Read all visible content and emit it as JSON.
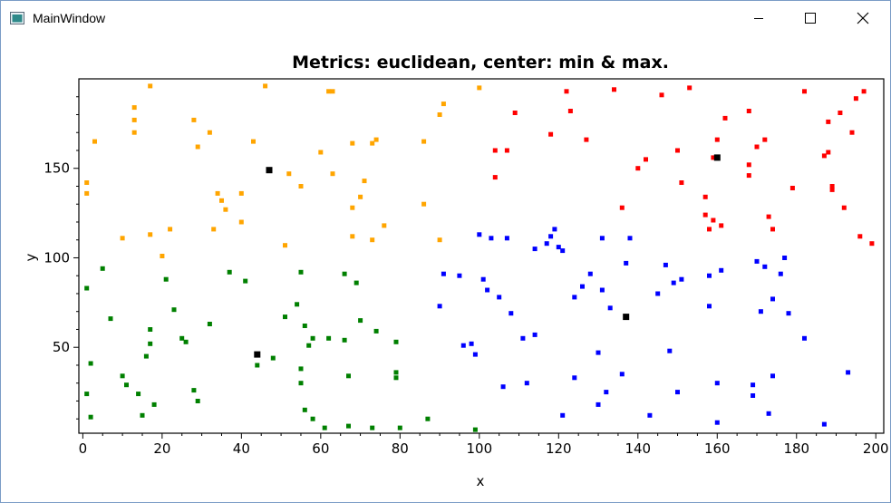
{
  "window": {
    "title": "MainWindow"
  },
  "chart_data": {
    "type": "scatter",
    "title": "Metrics: euclidean, center: min & max.",
    "xlabel": "x",
    "ylabel": "y",
    "xlim": [
      -1,
      202
    ],
    "ylim": [
      2,
      200
    ],
    "xticks": [
      0,
      20,
      40,
      60,
      80,
      100,
      120,
      140,
      160,
      180,
      200
    ],
    "yticks": [
      50,
      100,
      150
    ],
    "grid": false,
    "series": [
      {
        "color": "#ffa500",
        "points": [
          [
            1,
            142
          ],
          [
            1,
            136
          ],
          [
            3,
            165
          ],
          [
            10,
            111
          ],
          [
            13,
            177
          ],
          [
            13,
            184
          ],
          [
            13,
            170
          ],
          [
            17,
            196
          ],
          [
            17,
            113
          ],
          [
            20,
            101
          ],
          [
            22,
            116
          ],
          [
            28,
            177
          ],
          [
            29,
            162
          ],
          [
            32,
            170
          ],
          [
            33,
            116
          ],
          [
            34,
            136
          ],
          [
            35,
            132
          ],
          [
            36,
            127
          ],
          [
            40,
            120
          ],
          [
            40,
            136
          ],
          [
            43,
            165
          ],
          [
            46,
            196
          ],
          [
            51,
            107
          ],
          [
            52,
            147
          ],
          [
            55,
            140
          ],
          [
            60,
            159
          ],
          [
            62,
            193
          ],
          [
            63,
            193
          ],
          [
            63,
            147
          ],
          [
            68,
            164
          ],
          [
            68,
            112
          ],
          [
            68,
            128
          ],
          [
            70,
            134
          ],
          [
            71,
            143
          ],
          [
            73,
            110
          ],
          [
            73,
            164
          ],
          [
            74,
            166
          ],
          [
            76,
            118
          ],
          [
            86,
            130
          ],
          [
            86,
            165
          ],
          [
            90,
            180
          ],
          [
            90,
            110
          ],
          [
            91,
            186
          ],
          [
            100,
            195
          ]
        ]
      },
      {
        "color": "#ff0000",
        "points": [
          [
            104,
            145
          ],
          [
            104,
            160
          ],
          [
            107,
            160
          ],
          [
            109,
            181
          ],
          [
            118,
            169
          ],
          [
            122,
            193
          ],
          [
            123,
            182
          ],
          [
            127,
            166
          ],
          [
            134,
            194
          ],
          [
            136,
            128
          ],
          [
            140,
            150
          ],
          [
            142,
            155
          ],
          [
            146,
            191
          ],
          [
            150,
            160
          ],
          [
            151,
            142
          ],
          [
            153,
            195
          ],
          [
            157,
            134
          ],
          [
            157,
            124
          ],
          [
            158,
            116
          ],
          [
            159,
            121
          ],
          [
            159,
            156
          ],
          [
            160,
            166
          ],
          [
            161,
            118
          ],
          [
            162,
            178
          ],
          [
            168,
            182
          ],
          [
            168,
            146
          ],
          [
            168,
            152
          ],
          [
            170,
            162
          ],
          [
            172,
            166
          ],
          [
            173,
            123
          ],
          [
            174,
            116
          ],
          [
            179,
            139
          ],
          [
            182,
            193
          ],
          [
            187,
            157
          ],
          [
            188,
            176
          ],
          [
            188,
            159
          ],
          [
            189,
            140
          ],
          [
            189,
            138
          ],
          [
            191,
            181
          ],
          [
            192,
            128
          ],
          [
            194,
            170
          ],
          [
            195,
            189
          ],
          [
            196,
            112
          ],
          [
            197,
            193
          ],
          [
            199,
            108
          ]
        ]
      },
      {
        "color": "#0000ff",
        "points": [
          [
            90,
            73
          ],
          [
            91,
            91
          ],
          [
            95,
            90
          ],
          [
            96,
            51
          ],
          [
            98,
            52
          ],
          [
            99,
            46
          ],
          [
            100,
            113
          ],
          [
            101,
            88
          ],
          [
            102,
            82
          ],
          [
            103,
            111
          ],
          [
            105,
            78
          ],
          [
            106,
            28
          ],
          [
            107,
            111
          ],
          [
            108,
            69
          ],
          [
            111,
            55
          ],
          [
            112,
            30
          ],
          [
            114,
            105
          ],
          [
            114,
            57
          ],
          [
            117,
            108
          ],
          [
            118,
            112
          ],
          [
            119,
            116
          ],
          [
            120,
            106
          ],
          [
            121,
            104
          ],
          [
            121,
            12
          ],
          [
            124,
            78
          ],
          [
            124,
            33
          ],
          [
            126,
            84
          ],
          [
            128,
            91
          ],
          [
            130,
            47
          ],
          [
            130,
            18
          ],
          [
            131,
            111
          ],
          [
            131,
            82
          ],
          [
            132,
            25
          ],
          [
            133,
            72
          ],
          [
            136,
            35
          ],
          [
            137,
            97
          ],
          [
            138,
            111
          ],
          [
            143,
            12
          ],
          [
            145,
            80
          ],
          [
            147,
            96
          ],
          [
            148,
            48
          ],
          [
            149,
            86
          ],
          [
            150,
            25
          ],
          [
            151,
            88
          ],
          [
            158,
            90
          ],
          [
            158,
            73
          ],
          [
            160,
            8
          ],
          [
            160,
            30
          ],
          [
            161,
            93
          ],
          [
            169,
            29
          ],
          [
            169,
            23
          ],
          [
            170,
            98
          ],
          [
            171,
            70
          ],
          [
            172,
            95
          ],
          [
            173,
            13
          ],
          [
            174,
            34
          ],
          [
            174,
            77
          ],
          [
            176,
            91
          ],
          [
            177,
            100
          ],
          [
            178,
            69
          ],
          [
            182,
            55
          ],
          [
            187,
            7
          ],
          [
            193,
            36
          ]
        ]
      },
      {
        "color": "#008000",
        "points": [
          [
            1,
            83
          ],
          [
            1,
            24
          ],
          [
            2,
            41
          ],
          [
            2,
            11
          ],
          [
            5,
            94
          ],
          [
            7,
            66
          ],
          [
            10,
            34
          ],
          [
            11,
            29
          ],
          [
            14,
            24
          ],
          [
            15,
            12
          ],
          [
            16,
            45
          ],
          [
            17,
            52
          ],
          [
            17,
            60
          ],
          [
            18,
            18
          ],
          [
            21,
            88
          ],
          [
            23,
            71
          ],
          [
            25,
            55
          ],
          [
            26,
            53
          ],
          [
            28,
            26
          ],
          [
            29,
            20
          ],
          [
            32,
            63
          ],
          [
            37,
            92
          ],
          [
            41,
            87
          ],
          [
            44,
            40
          ],
          [
            48,
            44
          ],
          [
            51,
            67
          ],
          [
            54,
            74
          ],
          [
            55,
            92
          ],
          [
            55,
            30
          ],
          [
            55,
            38
          ],
          [
            56,
            15
          ],
          [
            56,
            62
          ],
          [
            57,
            51
          ],
          [
            58,
            55
          ],
          [
            58,
            10
          ],
          [
            61,
            5
          ],
          [
            62,
            55
          ],
          [
            66,
            91
          ],
          [
            66,
            54
          ],
          [
            67,
            34
          ],
          [
            67,
            6
          ],
          [
            69,
            86
          ],
          [
            70,
            65
          ],
          [
            73,
            5
          ],
          [
            74,
            59
          ],
          [
            79,
            53
          ],
          [
            79,
            36
          ],
          [
            79,
            33
          ],
          [
            80,
            5
          ],
          [
            87,
            10
          ],
          [
            99,
            4
          ]
        ]
      },
      {
        "color": "#000000",
        "points": [
          [
            47,
            149
          ],
          [
            44,
            46
          ],
          [
            137,
            67
          ],
          [
            160,
            156
          ]
        ]
      }
    ]
  }
}
